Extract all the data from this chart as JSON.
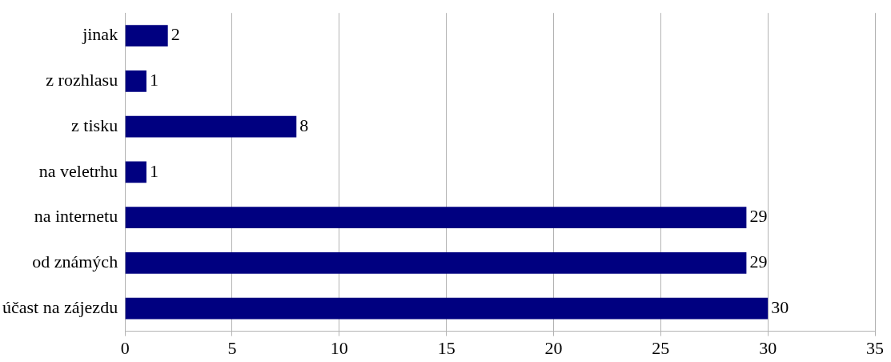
{
  "chart_data": {
    "type": "bar",
    "orientation": "horizontal",
    "categories": [
      "jinak",
      "z rozhlasu",
      "z tisku",
      "na veletrhu",
      "na internetu",
      "od známých",
      "účast na zájezdu"
    ],
    "values": [
      2,
      1,
      8,
      1,
      29,
      29,
      30
    ],
    "color": "#000080",
    "xlim": [
      0,
      35
    ],
    "xticks": [
      0,
      5,
      10,
      15,
      20,
      25,
      30,
      35
    ],
    "grid": "x",
    "data_labels": true
  }
}
